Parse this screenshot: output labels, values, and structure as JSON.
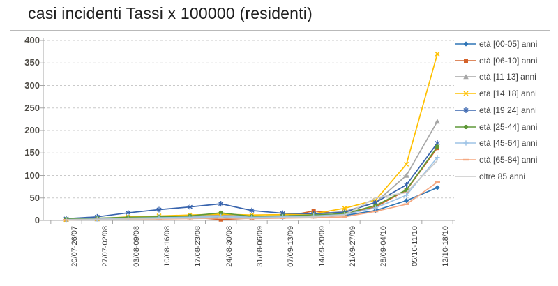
{
  "title": "casi incidenti Tassi x 100000 (residenti)",
  "chart_data": {
    "type": "line",
    "title": "casi incidenti Tassi x 100000 (residenti)",
    "xlabel": "",
    "ylabel": "",
    "ylim": [
      0,
      400
    ],
    "ytick_interval": 50,
    "yticks": [
      0,
      50,
      100,
      150,
      200,
      250,
      300,
      350,
      400
    ],
    "grid": "horizontal-dashed",
    "legend_position": "right",
    "axis_color": "#a6a6a6",
    "gridline_color": "#c9c9c9",
    "categories": [
      "20/07-26/07",
      "27/07-02/08",
      "03/08-09/08",
      "10/08-16/08",
      "17/08-23/08",
      "24/08-30/08",
      "31/08-06/09",
      "07/09-13/09",
      "14/09-20/09",
      "21/09-27/09",
      "28/09-04/10",
      "05/10-11/10",
      "12/10-18/10"
    ],
    "series": [
      {
        "name": "età [00-05] anni",
        "color": "#2E75B6",
        "marker": "diamond",
        "values": [
          2,
          3,
          4,
          5,
          6,
          8,
          6,
          7,
          9,
          11,
          22,
          44,
          73
        ]
      },
      {
        "name": "età [06-10] anni",
        "color": "#D4622A",
        "marker": "square",
        "values": [
          2,
          3,
          5,
          6,
          7,
          2,
          5,
          8,
          21,
          14,
          30,
          67,
          161
        ]
      },
      {
        "name": "età [11 13] anni",
        "color": "#A6A6A6",
        "marker": "triangle",
        "values": [
          2,
          3,
          6,
          8,
          9,
          12,
          9,
          10,
          14,
          20,
          40,
          100,
          220
        ]
      },
      {
        "name": "età [14 18] anni",
        "color": "#FFC000",
        "marker": "x",
        "values": [
          2,
          4,
          8,
          10,
          12,
          14,
          12,
          13,
          15,
          27,
          45,
          125,
          370
        ]
      },
      {
        "name": "età [19 24] anni",
        "color": "#3763AD",
        "marker": "asterisk",
        "values": [
          4,
          8,
          17,
          24,
          30,
          37,
          22,
          16,
          15,
          18,
          40,
          79,
          172
        ]
      },
      {
        "name": "età [25-44] anni",
        "color": "#5F9938",
        "marker": "circle",
        "values": [
          3,
          5,
          7,
          8,
          10,
          17,
          9,
          10,
          12,
          15,
          33,
          68,
          164
        ]
      },
      {
        "name": "età [45-64] anni",
        "color": "#9DC3E6",
        "marker": "plus",
        "values": [
          2,
          3,
          5,
          6,
          7,
          9,
          7,
          8,
          10,
          13,
          28,
          56,
          140
        ]
      },
      {
        "name": "età [65-84] anni",
        "color": "#F5A881",
        "marker": "dash",
        "values": [
          1,
          2,
          3,
          3,
          4,
          5,
          4,
          5,
          6,
          8,
          20,
          36,
          85
        ]
      },
      {
        "name": "oltre 85 anni",
        "color": "#C9C9C9",
        "marker": "none",
        "values": [
          1,
          2,
          3,
          4,
          5,
          6,
          5,
          6,
          8,
          12,
          50,
          62,
          133
        ]
      }
    ]
  }
}
